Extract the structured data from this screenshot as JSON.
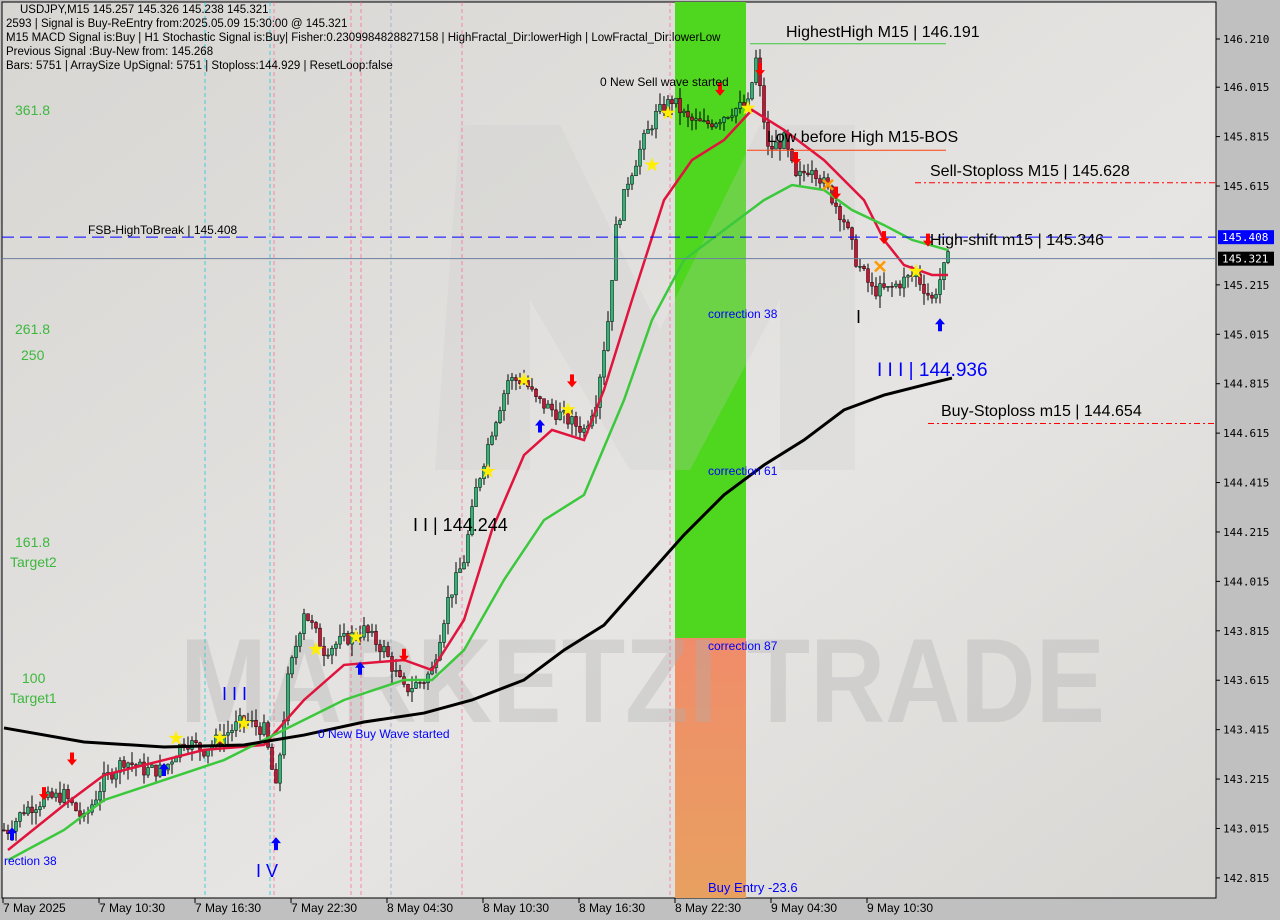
{
  "header": {
    "symbol_line": "USDJPY,M15  145.257 145.326 145.238 145.321",
    "signal_line": "2593 | Signal is Buy-ReEntry from:2025.05.09 15:30:00 @ 145.321",
    "macd_line": "M15 MACD Signal is:Buy | H1 Stochastic Signal is:Buy| Fisher:0.2309984828827158 | HighFractal_Dir:lowerHigh | LowFractal_Dir:lowerLow",
    "previous_line": "Previous Signal :Buy-New from: 145.268",
    "bars_line": "Bars: 5751 | ArraySize UpSignal: 5751 | Stoploss:144.929 | ResetLoop:false"
  },
  "watermark": "MARKETZI TRADE",
  "colors": {
    "background": "#dcdad7",
    "axis_bg": "#c0c0c0",
    "bull": "#2bb673",
    "bear": "#d01030",
    "ma_fast": "#e0143c",
    "ma_mid": "#3cc83c",
    "ma_slow": "#000000",
    "zone_green": "#4fd61e",
    "zone_orange": "#e99a5e",
    "level_blue": "#0000ff",
    "level_red": "#ff0000"
  },
  "chart_data": {
    "type": "candlestick",
    "title": "USDJPY,M15",
    "ylim": [
      142.75,
      146.36
    ],
    "y_ticks": [
      "146.210",
      "146.015",
      "145.815",
      "145.615",
      "145.408",
      "145.321",
      "145.215",
      "145.015",
      "144.815",
      "144.615",
      "144.415",
      "144.215",
      "144.015",
      "143.815",
      "143.615",
      "143.415",
      "143.215",
      "143.015",
      "142.815"
    ],
    "x_ticks": [
      "7 May 2025",
      "7 May 10:30",
      "7 May 16:30",
      "7 May 22:30",
      "8 May 04:30",
      "8 May 10:30",
      "8 May 16:30",
      "8 May 22:30",
      "9 May 04:30",
      "9 May 10:30"
    ],
    "close_path": {
      "bar": [
        1,
        5,
        10,
        15,
        20,
        25,
        30,
        35,
        40,
        45,
        50,
        55,
        60,
        65,
        68,
        71,
        75,
        80,
        85,
        90,
        95,
        100,
        105,
        107,
        111,
        115,
        118,
        122,
        126,
        130,
        133,
        137,
        141,
        145,
        148,
        151,
        153,
        156,
        160,
        163,
        167,
        171,
        175,
        178,
        182,
        186,
        188,
        191,
        195,
        198,
        202,
        206,
        210,
        213,
        217,
        221,
        225,
        228,
        232,
        236
      ],
      "price": [
        143.009,
        143.09,
        143.13,
        143.15,
        143.049,
        143.211,
        143.292,
        143.252,
        143.252,
        143.373,
        143.333,
        143.393,
        143.454,
        143.414,
        143.171,
        143.616,
        143.899,
        143.737,
        143.778,
        143.818,
        143.737,
        143.575,
        143.616,
        143.656,
        143.94,
        144.102,
        144.385,
        144.628,
        144.83,
        144.83,
        144.749,
        144.709,
        144.668,
        144.628,
        144.749,
        145.073,
        145.437,
        145.639,
        145.801,
        145.902,
        145.963,
        145.882,
        145.862,
        145.882,
        145.923,
        145.943,
        146.125,
        145.761,
        145.801,
        145.639,
        145.7,
        145.599,
        145.478,
        145.316,
        145.194,
        145.194,
        145.234,
        145.255,
        145.154,
        145.321
      ]
    },
    "series": [
      {
        "color": "#e0143c",
        "bar": [
          1,
          15,
          25,
          40,
          50,
          65,
          75,
          85,
          100,
          107,
          115,
          122,
          130,
          137,
          145,
          150,
          157,
          165,
          172,
          180,
          187,
          195,
          205,
          215,
          220,
          225,
          232,
          236
        ],
        "price": [
          142.928,
          143.11,
          143.231,
          143.292,
          143.333,
          143.353,
          143.535,
          143.677,
          143.697,
          143.656,
          143.859,
          144.223,
          144.526,
          144.628,
          144.587,
          144.79,
          145.154,
          145.558,
          145.72,
          145.801,
          145.923,
          145.842,
          145.72,
          145.558,
          145.397,
          145.295,
          145.255,
          145.255
        ]
      },
      {
        "color": "#3cc83c",
        "bar": [
          1,
          15,
          25,
          40,
          55,
          70,
          85,
          100,
          107,
          115,
          125,
          135,
          145,
          155,
          162,
          170,
          180,
          190,
          197,
          205,
          212,
          220,
          227,
          236
        ],
        "price": [
          142.887,
          143.009,
          143.13,
          143.211,
          143.292,
          143.414,
          143.535,
          143.616,
          143.616,
          143.737,
          144.021,
          144.263,
          144.365,
          144.749,
          145.073,
          145.316,
          145.437,
          145.558,
          145.619,
          145.599,
          145.518,
          145.457,
          145.397,
          145.356
        ]
      },
      {
        "color": "#000000",
        "bar": [
          0,
          20,
          40,
          60,
          75,
          90,
          105,
          117,
          130,
          140,
          150,
          160,
          170,
          180,
          190,
          200,
          210,
          220,
          230,
          237
        ],
        "price": [
          143.422,
          143.365,
          143.345,
          143.353,
          143.393,
          143.446,
          143.482,
          143.535,
          143.616,
          143.737,
          143.838,
          144.021,
          144.203,
          144.365,
          144.486,
          144.587,
          144.709,
          144.769,
          144.81,
          144.838
        ]
      }
    ],
    "levels": [
      {
        "label": "FSB-HighToBreak | 145.408",
        "price": 145.408,
        "style": "blue-dashed",
        "tag": "145.408"
      },
      {
        "label": "",
        "price": 145.321,
        "style": "gray-solid",
        "tag": "145.321"
      },
      {
        "label": "Sell-Stoploss M15 | 145.628",
        "price": 145.628,
        "style": "red-dashdot"
      },
      {
        "label": "Buy-Stoploss m15 | 144.654",
        "price": 144.654,
        "style": "red-dashdot"
      },
      {
        "label": "HighestHigh    M15 | 146.191",
        "price": 146.191,
        "style": "green-solid"
      },
      {
        "label": "Low before High    M15-BOS",
        "price": 145.76,
        "style": "orange-solid"
      },
      {
        "label": "High-shift m15 | 145.346",
        "price": 145.346,
        "style": "text"
      }
    ],
    "annotations": [
      {
        "text": "0 New Sell wave started",
        "color": "#000"
      },
      {
        "text": "correction 38",
        "color": "#0000ff"
      },
      {
        "text": "correction 61",
        "color": "#0000ff"
      },
      {
        "text": "correction 87",
        "color": "#0000ff"
      },
      {
        "text": "Buy Entry -23.6",
        "color": "#0000ff"
      },
      {
        "text": "rection 38",
        "color": "#0000ff"
      },
      {
        "text": "0 New Buy Wave started",
        "color": "#0000ff"
      },
      {
        "text": "I I | 144.244",
        "color": "#000"
      },
      {
        "text": "I I I | 144.936",
        "color": "#0000ff"
      },
      {
        "text": "I V",
        "color": "#0000ff"
      },
      {
        "text": "I I I",
        "color": "#0000ff"
      },
      {
        "text": "I",
        "color": "#000"
      }
    ],
    "fib_labels": [
      "361.8",
      "261.8",
      "250",
      "161.8",
      "Target2",
      "100",
      "Target1"
    ],
    "signals": [
      {
        "bar": 2,
        "price": 143.02,
        "type": "buy-arrow"
      },
      {
        "bar": 10,
        "price": 143.13,
        "type": "sell-arrow"
      },
      {
        "bar": 17,
        "price": 143.27,
        "type": "sell-arrow"
      },
      {
        "bar": 40,
        "price": 143.28,
        "type": "buy-arrow"
      },
      {
        "bar": 43,
        "price": 143.38,
        "type": "star"
      },
      {
        "bar": 54,
        "price": 143.38,
        "type": "star"
      },
      {
        "bar": 60,
        "price": 143.44,
        "type": "star"
      },
      {
        "bar": 68,
        "price": 142.98,
        "type": "buy-arrow"
      },
      {
        "bar": 78,
        "price": 143.74,
        "type": "star"
      },
      {
        "bar": 88,
        "price": 143.79,
        "type": "star"
      },
      {
        "bar": 89,
        "price": 143.69,
        "type": "buy-arrow"
      },
      {
        "bar": 100,
        "price": 143.69,
        "type": "sell-arrow"
      },
      {
        "bar": 121,
        "price": 144.46,
        "type": "star"
      },
      {
        "bar": 130,
        "price": 144.83,
        "type": "star"
      },
      {
        "bar": 141,
        "price": 144.71,
        "type": "star"
      },
      {
        "bar": 142,
        "price": 144.8,
        "type": "sell-arrow"
      },
      {
        "bar": 134,
        "price": 144.67,
        "type": "buy-arrow"
      },
      {
        "bar": 162,
        "price": 145.7,
        "type": "star"
      },
      {
        "bar": 166,
        "price": 145.91,
        "type": "star"
      },
      {
        "bar": 179,
        "price": 145.98,
        "type": "sell-arrow"
      },
      {
        "bar": 186,
        "price": 145.93,
        "type": "star"
      },
      {
        "bar": 189,
        "price": 146.06,
        "type": "sell-arrow"
      },
      {
        "bar": 198,
        "price": 145.7,
        "type": "sell-arrow"
      },
      {
        "bar": 206,
        "price": 145.62,
        "type": "x"
      },
      {
        "bar": 208,
        "price": 145.56,
        "type": "sell-arrow"
      },
      {
        "bar": 219,
        "price": 145.29,
        "type": "x"
      },
      {
        "bar": 220,
        "price": 145.38,
        "type": "sell-arrow"
      },
      {
        "bar": 228,
        "price": 145.27,
        "type": "star"
      },
      {
        "bar": 231,
        "price": 145.37,
        "type": "sell-arrow"
      },
      {
        "bar": 234,
        "price": 145.08,
        "type": "buy-arrow"
      }
    ]
  }
}
